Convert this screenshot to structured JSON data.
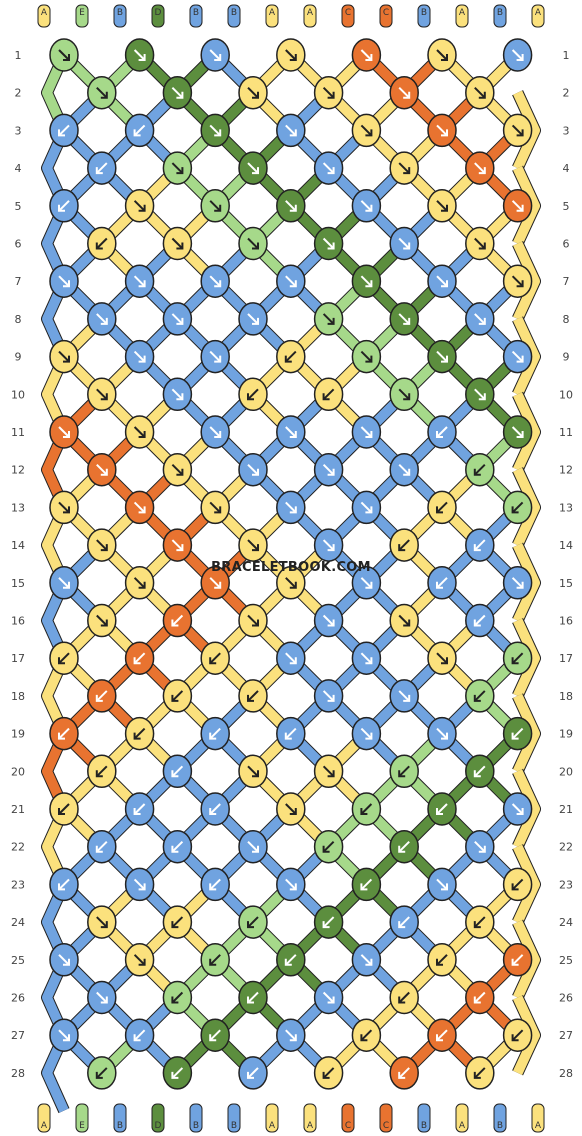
{
  "watermark": "BRACELETBOOK.COM",
  "strings": [
    "A",
    "E",
    "B",
    "D",
    "B",
    "B",
    "A",
    "A",
    "C",
    "C",
    "B",
    "A",
    "B",
    "A"
  ],
  "colors": {
    "A": "#FBE17D",
    "B": "#70A3E0",
    "C": "#E87330",
    "D": "#5C8E3E",
    "E": "#A6D98A"
  },
  "rows": [
    {
      "label": "1"
    },
    {
      "label": "2"
    },
    {
      "label": "3"
    },
    {
      "label": "4"
    },
    {
      "label": "5"
    },
    {
      "label": "6"
    },
    {
      "label": "7"
    },
    {
      "label": "8"
    },
    {
      "label": "9"
    },
    {
      "label": "10"
    },
    {
      "label": "11"
    },
    {
      "label": "12"
    },
    {
      "label": "13"
    },
    {
      "label": "14"
    },
    {
      "label": "15"
    },
    {
      "label": "16"
    },
    {
      "label": "17"
    },
    {
      "label": "18"
    },
    {
      "label": "19"
    },
    {
      "label": "20"
    },
    {
      "label": "21"
    },
    {
      "label": "22"
    },
    {
      "label": "23"
    },
    {
      "label": "24"
    },
    {
      "label": "25"
    },
    {
      "label": "26"
    },
    {
      "label": "27"
    },
    {
      "label": "28"
    }
  ],
  "knots": [
    [
      "EB",
      "DB",
      "BB",
      "AB",
      "CB",
      "AB",
      "BB"
    ],
    [
      "EB",
      "DB",
      "AB",
      "AB",
      "CB",
      "AB"
    ],
    [
      "BL",
      "BL",
      "DB",
      "BB",
      "AB",
      "CB",
      "AB"
    ],
    [
      "BL",
      "EB",
      "DB",
      "BB",
      "AB",
      "CB"
    ],
    [
      "BL",
      "AB",
      "EB",
      "DB",
      "BB",
      "AB",
      "CB"
    ],
    [
      "AL",
      "AB",
      "EB",
      "DB",
      "BB",
      "AB"
    ],
    [
      "BB",
      "BB",
      "BB",
      "BB",
      "DB",
      "BB",
      "AB"
    ],
    [
      "BB",
      "BB",
      "BB",
      "EB",
      "DB",
      "BB"
    ],
    [
      "AB",
      "BB",
      "BB",
      "AL",
      "EB",
      "DB",
      "BB"
    ],
    [
      "AB",
      "BB",
      "AL",
      "AL",
      "EB",
      "DB"
    ],
    [
      "CB",
      "AB",
      "BB",
      "BB",
      "BB",
      "BL",
      "DB"
    ],
    [
      "CB",
      "AB",
      "BB",
      "BB",
      "BB",
      "EL"
    ],
    [
      "AB",
      "CB",
      "AB",
      "BB",
      "BB",
      "AL",
      "EL"
    ],
    [
      "AB",
      "CB",
      "AB",
      "BB",
      "AL",
      "BL"
    ],
    [
      "BB",
      "AB",
      "CB",
      "AB",
      "BB",
      "BL",
      "BB"
    ],
    [
      "AB",
      "CL",
      "AB",
      "BB",
      "AB",
      "BL"
    ],
    [
      "AL",
      "CL",
      "AL",
      "BB",
      "BB",
      "AB",
      "EL"
    ],
    [
      "CL",
      "AL",
      "AL",
      "BB",
      "BB",
      "EL"
    ],
    [
      "CL",
      "AL",
      "BL",
      "BL",
      "BB",
      "BB",
      "DL"
    ],
    [
      "AL",
      "BL",
      "AB",
      "AB",
      "EL",
      "DL"
    ],
    [
      "AL",
      "BL",
      "BL",
      "AB",
      "EL",
      "DL",
      "BB"
    ],
    [
      "BL",
      "BL",
      "BB",
      "EL",
      "DL",
      "BB"
    ],
    [
      "BL",
      "BB",
      "BL",
      "BB",
      "DL",
      "BB",
      "AL"
    ],
    [
      "AB",
      "AL",
      "EL",
      "DL",
      "BL",
      "AL"
    ],
    [
      "BB",
      "AB",
      "EL",
      "DL",
      "BB",
      "AL",
      "CL"
    ],
    [
      "BB",
      "EL",
      "DL",
      "BB",
      "AL",
      "CL"
    ],
    [
      "BB",
      "BL",
      "DL",
      "BB",
      "AL",
      "CL",
      "AL"
    ],
    [
      "EL",
      "DL",
      "BL",
      "AL",
      "CL",
      "AL"
    ]
  ]
}
